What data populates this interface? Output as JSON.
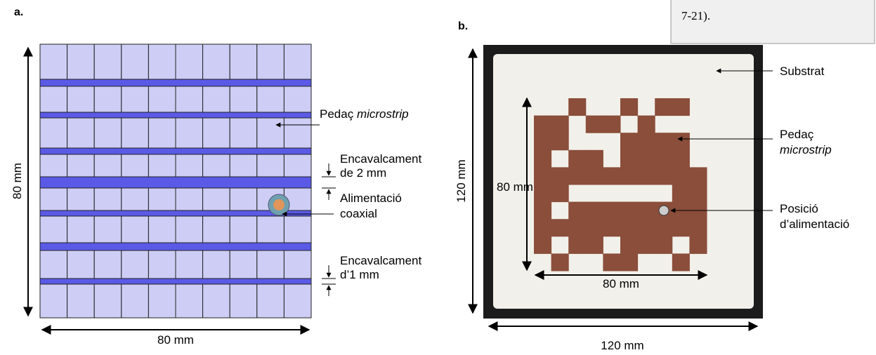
{
  "panel_a": {
    "label": "a.",
    "height": "80 mm",
    "width": "80 mm",
    "patch_1": "Pedaç ",
    "patch_2": "microstrip",
    "overlap2_1": "Encavalcament",
    "overlap2_2": "de 2 mm",
    "feed_1": "Alimentació",
    "feed_2": "coaxial",
    "overlap1_1": "Encavalcament",
    "overlap1_2": "d’1 mm"
  },
  "panel_b": {
    "label": "b.",
    "height": "120 mm",
    "width": "120 mm",
    "inner_height": "80 mm",
    "inner_width": "80 mm",
    "substrate": "Substrat",
    "patch_1": "Pedaç",
    "patch_2": "microstrip",
    "feed_1": "Posició",
    "feed_2": "d’alimentació"
  },
  "note": {
    "line": "7-21)."
  }
}
